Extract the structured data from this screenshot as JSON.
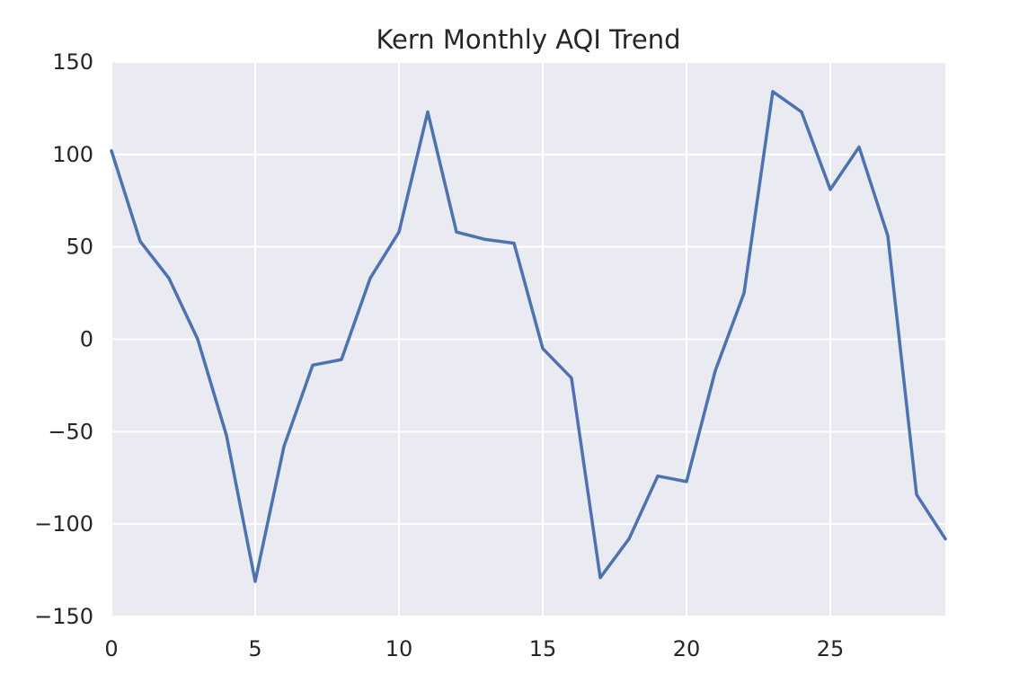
{
  "chart_data": {
    "type": "line",
    "title": "Kern Monthly AQI Trend",
    "xlabel": "",
    "ylabel": "",
    "xlim": [
      0,
      29
    ],
    "ylim": [
      -150,
      150
    ],
    "xticks": [
      0,
      5,
      10,
      15,
      20,
      25
    ],
    "yticks": [
      150,
      100,
      50,
      0,
      -50,
      -100,
      -150
    ],
    "ytick_labels": [
      "150",
      "100",
      "50",
      "0",
      "−50",
      "−100",
      "−150"
    ],
    "grid": true,
    "series": [
      {
        "color": "#4c72b0",
        "x": [
          0,
          1,
          2,
          3,
          4,
          5,
          6,
          7,
          8,
          9,
          10,
          11,
          12,
          13,
          14,
          15,
          16,
          17,
          18,
          19,
          20,
          21,
          22,
          23,
          24,
          25,
          26,
          27,
          28,
          29
        ],
        "y": [
          102,
          53,
          33,
          0,
          -52,
          -131,
          -58,
          -14,
          -11,
          33,
          58,
          123,
          58,
          54,
          52,
          -5,
          -21,
          -129,
          -108,
          -74,
          -77,
          -17,
          25,
          134,
          123,
          81,
          104,
          56,
          -84,
          -108
        ]
      }
    ]
  },
  "colors": {
    "plot_background": "#eaeaf2",
    "grid": "#ffffff",
    "line": "#4c72b0",
    "text": "#262626"
  }
}
